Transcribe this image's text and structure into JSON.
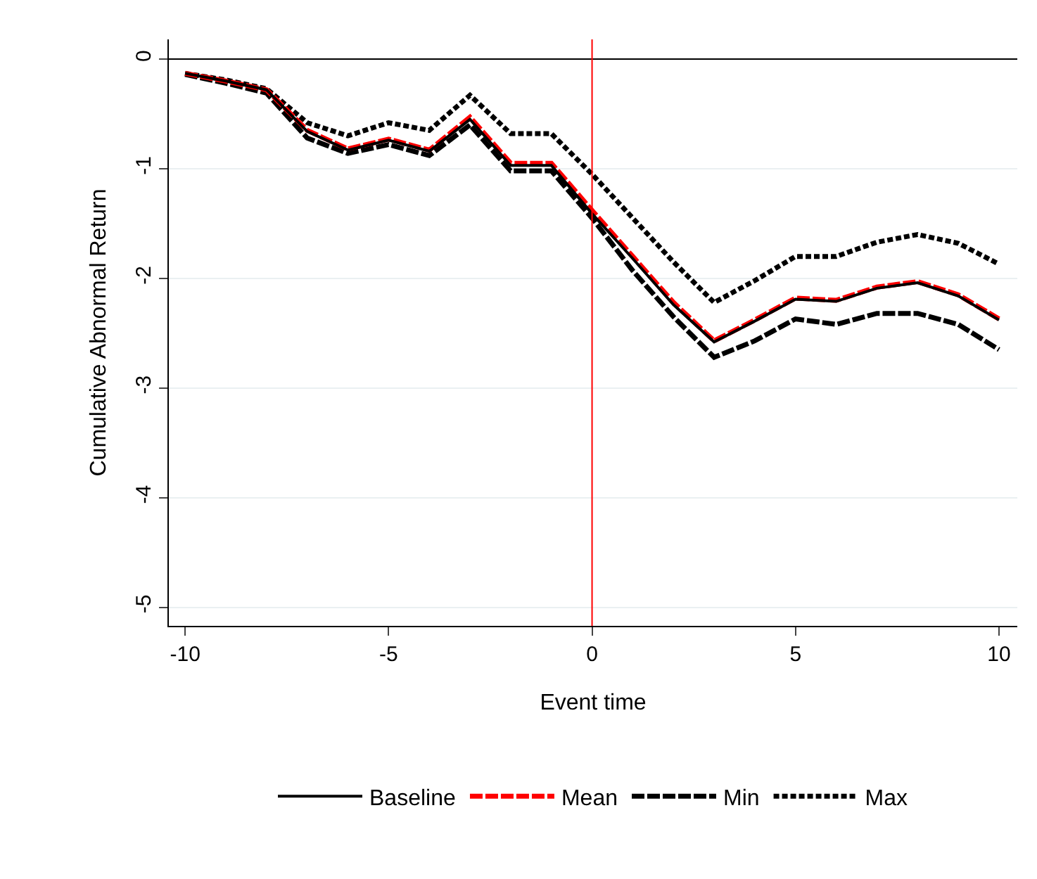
{
  "chart_data": {
    "type": "line",
    "xlabel": "Event time",
    "ylabel": "Cumulative Abnormal Return",
    "x": [
      -10,
      -9,
      -8,
      -7,
      -6,
      -5,
      -4,
      -3,
      -2,
      -1,
      0,
      1,
      2,
      3,
      4,
      5,
      6,
      7,
      8,
      9,
      10
    ],
    "series": [
      {
        "name": "Baseline",
        "color": "#000000",
        "line_style": "solid",
        "values": [
          -0.13,
          -0.2,
          -0.28,
          -0.66,
          -0.83,
          -0.74,
          -0.84,
          -0.55,
          -0.97,
          -0.97,
          -1.41,
          -1.82,
          -2.24,
          -2.58,
          -2.39,
          -2.19,
          -2.21,
          -2.09,
          -2.04,
          -2.16,
          -2.38
        ]
      },
      {
        "name": "Mean",
        "color": "#ff0000",
        "line_style": "dashed",
        "values": [
          -0.13,
          -0.2,
          -0.28,
          -0.65,
          -0.82,
          -0.73,
          -0.83,
          -0.53,
          -0.95,
          -0.95,
          -1.38,
          -1.8,
          -2.22,
          -2.57,
          -2.38,
          -2.18,
          -2.2,
          -2.08,
          -2.03,
          -2.15,
          -2.37
        ]
      },
      {
        "name": "Min",
        "color": "#000000",
        "line_style": "dashed",
        "values": [
          -0.14,
          -0.22,
          -0.31,
          -0.72,
          -0.86,
          -0.78,
          -0.88,
          -0.6,
          -1.02,
          -1.02,
          -1.45,
          -1.93,
          -2.35,
          -2.72,
          -2.57,
          -2.37,
          -2.42,
          -2.32,
          -2.32,
          -2.42,
          -2.65
        ]
      },
      {
        "name": "Max",
        "color": "#000000",
        "line_style": "dotted",
        "values": [
          -0.13,
          -0.19,
          -0.27,
          -0.58,
          -0.7,
          -0.58,
          -0.65,
          -0.33,
          -0.68,
          -0.68,
          -1.05,
          -1.45,
          -1.85,
          -2.22,
          -2.02,
          -1.8,
          -1.8,
          -1.67,
          -1.6,
          -1.68,
          -1.87
        ]
      }
    ],
    "xlim": [
      -10.4,
      10.45
    ],
    "xticks": [
      -10,
      -5,
      0,
      5,
      10
    ],
    "ylim": [
      -5.17,
      0.18
    ],
    "yticks": [
      -5,
      -4,
      -3,
      -2,
      -1,
      0
    ],
    "grid": "y",
    "legend": "bottom",
    "marker": "none",
    "ref_lines": [
      {
        "axis": "y",
        "value": 0,
        "color": "#000000"
      },
      {
        "axis": "x",
        "value": 0,
        "color": "#ff0000"
      }
    ]
  }
}
